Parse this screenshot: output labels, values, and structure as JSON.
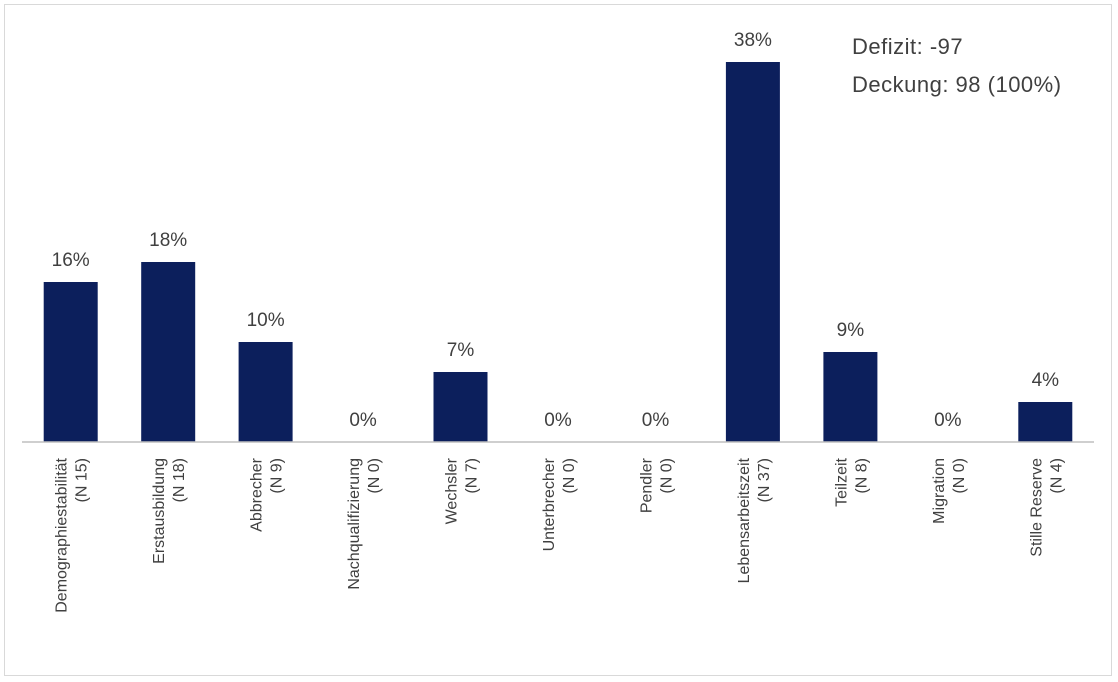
{
  "chart_data": {
    "type": "bar",
    "categories": [
      [
        "Demographiestabilität",
        "(N 15)"
      ],
      [
        "Erstausbildung",
        "(N 18)"
      ],
      [
        "Abbrecher",
        "(N 9)"
      ],
      [
        "Nachqualifizierung",
        "(N 0)"
      ],
      [
        "Wechsler",
        "(N 7)"
      ],
      [
        "Unterbrecher",
        "(N 0)"
      ],
      [
        "Pendler",
        "(N 0)"
      ],
      [
        "Lebensarbeitszeit",
        "(N 37)"
      ],
      [
        "Teilzeit",
        "(N 8)"
      ],
      [
        "Migration",
        "(N 0)"
      ],
      [
        "Stille Reserve",
        "(N 4)"
      ]
    ],
    "values": [
      16,
      18,
      10,
      0,
      7,
      0,
      0,
      38,
      9,
      0,
      4
    ],
    "data_labels": [
      "16%",
      "18%",
      "10%",
      "0%",
      "7%",
      "0%",
      "0%",
      "38%",
      "9%",
      "0%",
      "4%"
    ],
    "value_unit": "%",
    "ylim": [
      0,
      38
    ],
    "title": "",
    "xlabel": "",
    "ylabel": "",
    "grid": false,
    "legend": "none",
    "bar_color": "#0c1f5c",
    "axis_color": "#bfbfbf",
    "label_color": "#404040"
  },
  "annotation": {
    "defizit": "Defizit: -97",
    "deckung": "Deckung: 98 (100%)"
  }
}
